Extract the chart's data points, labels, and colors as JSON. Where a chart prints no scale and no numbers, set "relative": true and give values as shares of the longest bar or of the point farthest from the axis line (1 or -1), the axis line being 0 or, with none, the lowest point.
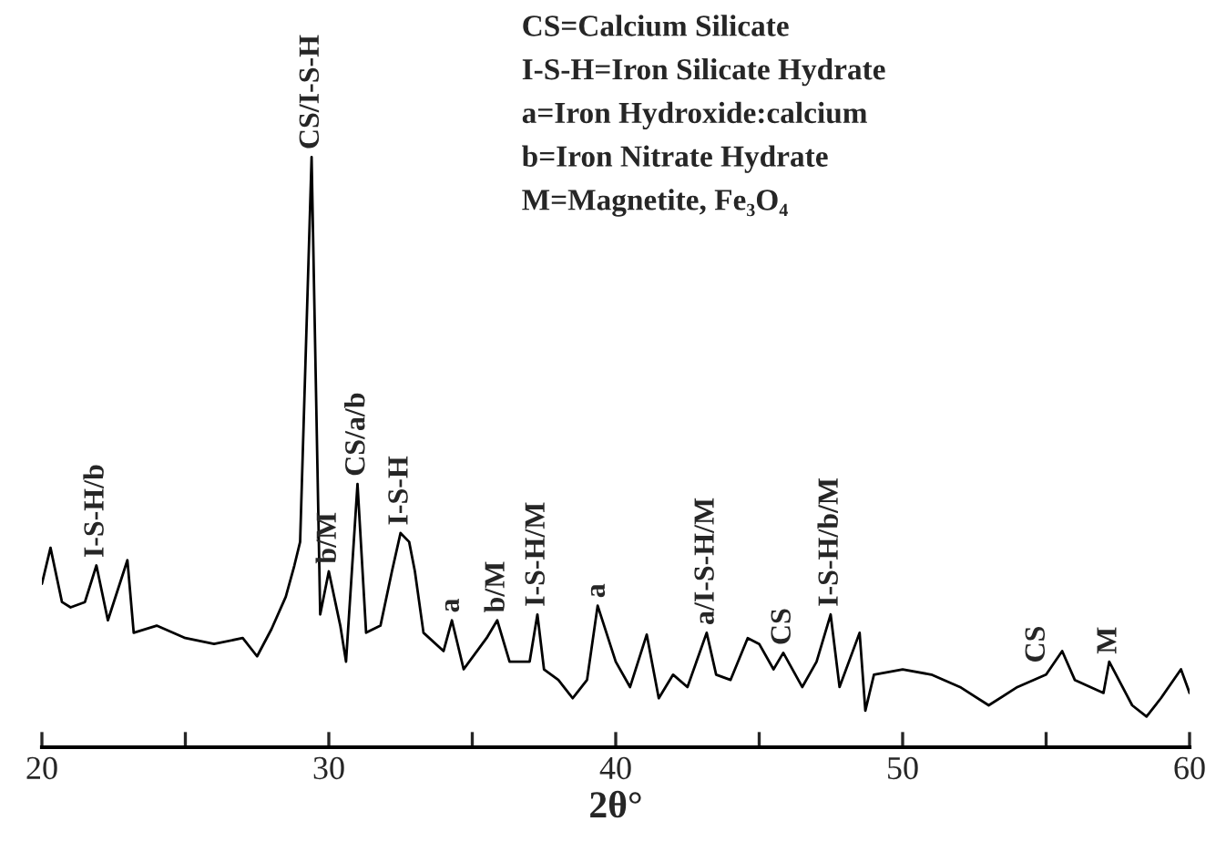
{
  "chart_data": {
    "type": "line",
    "relative": true,
    "xlabel": "2θ°",
    "xlim": [
      20,
      60
    ],
    "xticks": [
      20,
      {
        "value": 25,
        "label": null
      },
      30,
      {
        "value": 35,
        "label": null
      },
      40,
      {
        "value": 45,
        "label": null
      },
      50,
      {
        "value": 55,
        "label": null
      },
      60
    ],
    "tick_labels": "x",
    "grid": false,
    "legend": false,
    "series": [
      {
        "color": "#000000",
        "x": [
          20,
          20.3,
          20.7,
          21,
          21.5,
          21.9,
          22.3,
          22.98,
          23.2,
          24,
          25,
          26,
          27,
          27.5,
          28,
          28.5,
          28.8,
          29.0,
          29.4,
          29.7,
          30.0,
          30.4,
          30.6,
          31.0,
          31.3,
          31.8,
          32.2,
          32.5,
          32.8,
          33.0,
          33.3,
          34,
          34.29,
          34.7,
          35.5,
          35.87,
          36.3,
          37,
          37.27,
          37.5,
          38,
          38.5,
          39,
          39.37,
          40,
          40.5,
          41.08,
          41.5,
          42,
          42.5,
          43.17,
          43.5,
          44,
          44.6,
          45,
          45.5,
          45.84,
          46.5,
          47,
          47.49,
          47.8,
          48.5,
          48.7,
          49,
          50,
          51,
          52,
          53,
          54,
          55,
          55.56,
          56,
          57,
          57.2,
          58,
          58.5,
          59,
          59.7,
          60
        ],
        "values": [
          0.277,
          0.338,
          0.246,
          0.237,
          0.246,
          0.308,
          0.215,
          0.317,
          0.194,
          0.206,
          0.185,
          0.175,
          0.185,
          0.154,
          0.2,
          0.255,
          0.308,
          0.348,
          1.0,
          0.225,
          0.298,
          0.206,
          0.145,
          0.446,
          0.194,
          0.206,
          0.298,
          0.363,
          0.348,
          0.298,
          0.194,
          0.163,
          0.215,
          0.132,
          0.185,
          0.215,
          0.145,
          0.145,
          0.225,
          0.132,
          0.114,
          0.083,
          0.114,
          0.24,
          0.145,
          0.102,
          0.191,
          0.083,
          0.123,
          0.102,
          0.194,
          0.123,
          0.114,
          0.185,
          0.175,
          0.132,
          0.16,
          0.102,
          0.145,
          0.225,
          0.102,
          0.194,
          0.062,
          0.123,
          0.132,
          0.123,
          0.102,
          0.071,
          0.102,
          0.123,
          0.163,
          0.114,
          0.092,
          0.145,
          0.071,
          0.052,
          0.083,
          0.132,
          0.092
        ]
      }
    ],
    "annotations": [
      {
        "text": "I-S-H/b",
        "x": 21.9,
        "y": 0.308
      },
      {
        "text": "CS/I-S-H",
        "x": 29.4,
        "y": 1.0
      },
      {
        "text": "b/M",
        "x": 30.0,
        "y": 0.298
      },
      {
        "text": "CS/a/b",
        "x": 31.0,
        "y": 0.446
      },
      {
        "text": "I-S-H",
        "x": 32.5,
        "y": 0.363
      },
      {
        "text": "a",
        "x": 34.29,
        "y": 0.215
      },
      {
        "text": "b/M",
        "x": 35.87,
        "y": 0.215
      },
      {
        "text": "I-S-H/M",
        "x": 37.27,
        "y": 0.225
      },
      {
        "text": "a",
        "x": 39.37,
        "y": 0.24
      },
      {
        "text": "a/I-S-H/M",
        "x": 43.17,
        "y": 0.194
      },
      {
        "text": "CS",
        "x": 45.84,
        "y": 0.16
      },
      {
        "text": "I-S-H/b/M",
        "x": 47.49,
        "y": 0.225
      },
      {
        "text": "CS",
        "x": 54.7,
        "y": 0.13
      },
      {
        "text": "M",
        "x": 57.2,
        "y": 0.145
      },
      "CS=Calcium Silicate",
      "I-S-H=Iron Silicate Hydrate",
      "a=Iron Hydroxide:calcium",
      "b=Iron Nitrate Hydrate",
      "M=Magnetite, Fe₃O₄"
    ]
  }
}
